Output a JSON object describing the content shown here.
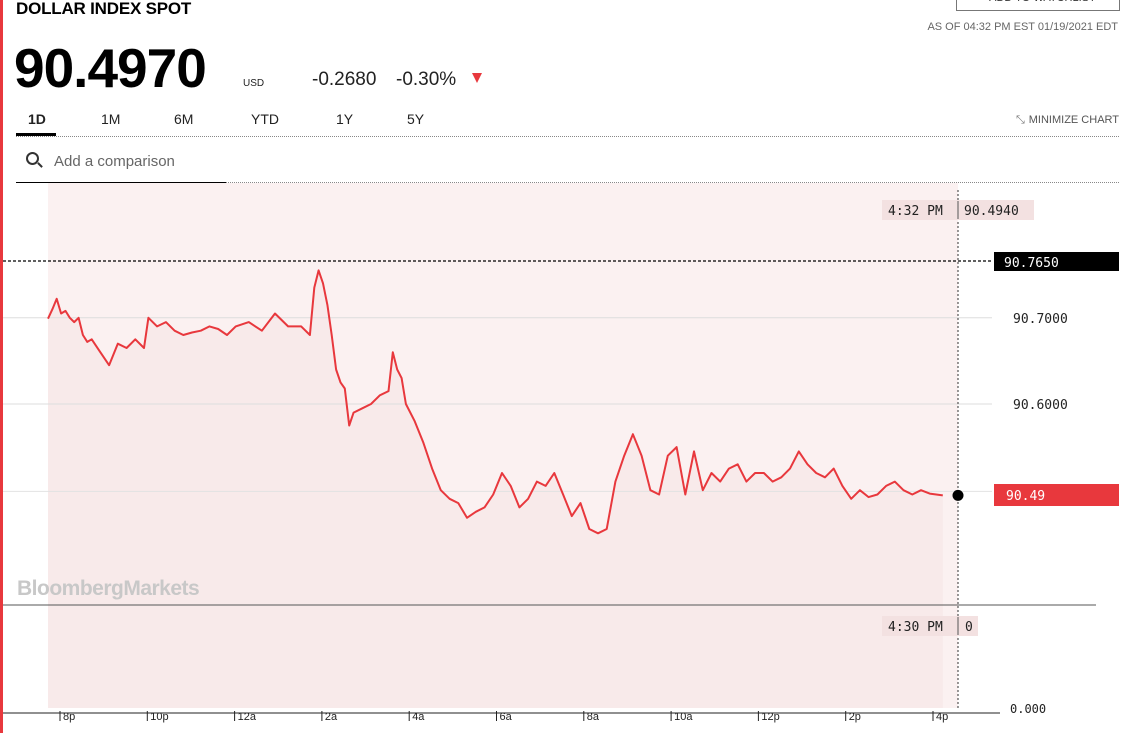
{
  "header": {
    "title": "DOLLAR INDEX SPOT",
    "watchlist_label": "+ ADD TO WATCHLIST",
    "as_of": "AS OF 04:32 PM EST 01/19/2021 EDT",
    "price": "90.4970",
    "currency": "USD",
    "change": "-0.2680",
    "change_pct": "-0.30%"
  },
  "tabs": [
    "1D",
    "1M",
    "6M",
    "YTD",
    "1Y",
    "5Y"
  ],
  "active_tab": "1D",
  "minimize_label": "MINIMIZE CHART",
  "search": {
    "placeholder": "Add a comparison"
  },
  "watermark": "BloombergMarkets",
  "colors": {
    "accent": "#e8383d",
    "line": "#e8383d",
    "fill": "#f8eaea"
  },
  "chart_data": {
    "type": "line",
    "price_range": [
      90.4,
      90.8
    ],
    "gridlines": [
      "90.7000",
      "90.6000"
    ],
    "high_label": "90.7650",
    "high_value": 90.765,
    "last_label": "90.49",
    "last_value": 90.494,
    "crosshair": {
      "time": "4:32 PM",
      "value": "90.4940"
    },
    "volume_crosshair": {
      "time": "4:30 PM",
      "value": "0"
    },
    "volume_axis_label": "0.000",
    "x_ticks": [
      "8p",
      "10p",
      "12a",
      "2a",
      "4a",
      "6a",
      "8a",
      "10a",
      "12p",
      "2p",
      "4p"
    ],
    "x_hours": [
      0,
      2,
      4,
      6,
      8,
      10,
      12,
      14,
      16,
      18,
      20
    ],
    "x_last": 20.5,
    "series": [
      {
        "x": [
          0.0,
          0.1,
          0.2,
          0.3,
          0.4,
          0.5,
          0.6,
          0.7,
          0.8,
          0.9,
          1.0,
          1.2,
          1.4,
          1.6,
          1.8,
          2.0,
          2.2,
          2.3,
          2.5,
          2.7,
          2.9,
          3.1,
          3.3,
          3.5,
          3.7,
          3.9,
          4.1,
          4.3,
          4.6,
          4.9,
          5.2,
          5.5,
          5.8,
          6.0,
          6.1,
          6.2,
          6.3,
          6.4,
          6.5,
          6.6,
          6.7,
          6.8,
          6.9,
          7.0,
          7.2,
          7.4,
          7.6,
          7.8,
          7.9,
          8.0,
          8.1,
          8.2,
          8.4,
          8.6,
          8.8,
          9.0,
          9.2,
          9.4,
          9.6,
          9.8,
          10.0,
          10.2,
          10.4,
          10.6,
          10.8,
          11.0,
          11.2,
          11.4,
          11.6,
          11.8,
          12.0,
          12.2,
          12.4,
          12.6,
          12.8,
          13.0,
          13.2,
          13.4,
          13.6,
          13.8,
          14.0,
          14.2,
          14.4,
          14.6,
          14.8,
          15.0,
          15.2,
          15.4,
          15.6,
          15.8,
          16.0,
          16.2,
          16.4,
          16.6,
          16.8,
          17.0,
          17.2,
          17.4,
          17.6,
          17.8,
          18.0,
          18.2,
          18.4,
          18.6,
          18.8,
          19.0,
          19.2,
          19.4,
          19.6,
          19.8,
          20.0,
          20.2,
          20.5
        ],
        "y": [
          90.699,
          90.71,
          90.722,
          90.705,
          90.708,
          90.7,
          90.695,
          90.7,
          90.68,
          90.672,
          90.675,
          90.66,
          90.645,
          90.67,
          90.665,
          90.675,
          90.665,
          90.7,
          90.69,
          90.695,
          90.685,
          90.68,
          90.683,
          90.685,
          90.69,
          90.687,
          90.68,
          90.69,
          90.695,
          90.685,
          90.705,
          90.69,
          90.69,
          90.68,
          90.735,
          90.755,
          90.74,
          90.715,
          90.68,
          90.64,
          90.625,
          90.618,
          90.575,
          90.59,
          90.595,
          90.6,
          90.61,
          90.615,
          90.66,
          90.64,
          90.63,
          90.6,
          90.58,
          90.555,
          90.525,
          90.5,
          90.49,
          90.485,
          90.468,
          90.475,
          90.48,
          90.495,
          90.52,
          90.505,
          90.48,
          90.49,
          90.51,
          90.505,
          90.52,
          90.495,
          90.47,
          90.485,
          90.455,
          90.45,
          90.455,
          90.51,
          90.54,
          90.565,
          90.54,
          90.5,
          90.495,
          90.54,
          90.55,
          90.495,
          90.545,
          90.5,
          90.52,
          90.51,
          90.525,
          90.53,
          90.51,
          90.52,
          90.52,
          90.51,
          90.515,
          90.525,
          90.545,
          90.53,
          90.52,
          90.515,
          90.525,
          90.505,
          90.49,
          90.5,
          90.492,
          90.495,
          90.505,
          90.51,
          90.5,
          90.495,
          90.5,
          90.496,
          90.494
        ]
      }
    ]
  }
}
